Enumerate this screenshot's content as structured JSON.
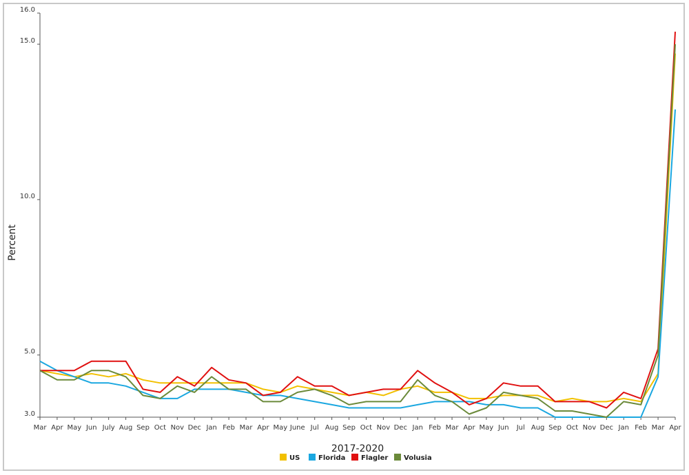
{
  "chart_data": {
    "type": "line",
    "title": "",
    "xlabel": "2017-2020",
    "ylabel": "Percent",
    "ylim": [
      3.0,
      16.0
    ],
    "yticks": [
      "3.0",
      "5.0",
      "10.0",
      "15.0",
      "16.0"
    ],
    "grid": false,
    "legend_position": "bottom",
    "categories": [
      "Mar",
      "Apr",
      "May",
      "Jun",
      "July",
      "Aug",
      "Sep",
      "Oct",
      "Nov",
      "Dec",
      "Jan",
      "Feb",
      "Mar",
      "Apr",
      "May",
      "June",
      "Jul",
      "Aug",
      "Sep",
      "Oct",
      "Nov",
      "Dec",
      "Jan",
      "Feb",
      "Mar",
      "Apr",
      "May",
      "Jun",
      "Jul",
      "Aug",
      "Sep",
      "Oct",
      "Nov",
      "Dec",
      "Jan",
      "Feb",
      "Mar",
      "Apr"
    ],
    "series": [
      {
        "name": "US",
        "color": "#f2c000",
        "values": [
          4.5,
          4.4,
          4.3,
          4.4,
          4.3,
          4.4,
          4.2,
          4.1,
          4.1,
          4.1,
          4.1,
          4.1,
          4.1,
          3.9,
          3.8,
          4.0,
          3.9,
          3.8,
          3.7,
          3.8,
          3.7,
          3.9,
          4.0,
          3.8,
          3.8,
          3.6,
          3.6,
          3.7,
          3.7,
          3.7,
          3.5,
          3.6,
          3.5,
          3.5,
          3.6,
          3.5,
          4.4,
          14.7
        ]
      },
      {
        "name": "Florida",
        "color": "#1aa7e0",
        "values": [
          4.8,
          4.5,
          4.3,
          4.1,
          4.1,
          4.0,
          3.8,
          3.6,
          3.6,
          3.9,
          3.9,
          3.9,
          3.8,
          3.7,
          3.7,
          3.6,
          3.5,
          3.4,
          3.3,
          3.3,
          3.3,
          3.3,
          3.4,
          3.5,
          3.5,
          3.5,
          3.4,
          3.4,
          3.3,
          3.3,
          3.0,
          3.0,
          3.0,
          3.0,
          3.0,
          3.0,
          4.3,
          12.9
        ]
      },
      {
        "name": "Flagler",
        "color": "#e01010",
        "values": [
          4.5,
          4.5,
          4.5,
          4.8,
          4.8,
          4.8,
          3.9,
          3.8,
          4.3,
          4.0,
          4.6,
          4.2,
          4.1,
          3.7,
          3.8,
          4.3,
          4.0,
          4.0,
          3.7,
          3.8,
          3.9,
          3.9,
          4.5,
          4.1,
          3.8,
          3.4,
          3.6,
          4.1,
          4.0,
          4.0,
          3.5,
          3.5,
          3.5,
          3.3,
          3.8,
          3.6,
          5.2,
          15.4
        ]
      },
      {
        "name": "Volusia",
        "color": "#6b8a3a",
        "values": [
          4.5,
          4.2,
          4.2,
          4.5,
          4.5,
          4.3,
          3.7,
          3.6,
          4.0,
          3.8,
          4.3,
          3.9,
          3.9,
          3.5,
          3.5,
          3.8,
          3.9,
          3.7,
          3.4,
          3.5,
          3.5,
          3.5,
          4.2,
          3.7,
          3.5,
          3.1,
          3.3,
          3.8,
          3.7,
          3.6,
          3.2,
          3.2,
          3.1,
          3.0,
          3.5,
          3.4,
          5.0,
          15.0
        ]
      }
    ]
  }
}
